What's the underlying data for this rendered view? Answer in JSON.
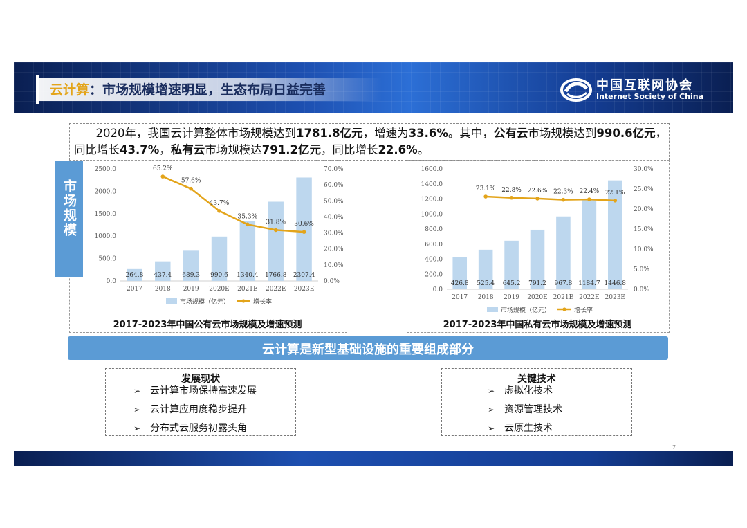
{
  "header": {
    "title_highlight": "云计算",
    "title_rest": "：市场规模增速明显，生态布局日益完善",
    "logo_cn": "中国互联网协会",
    "logo_en": "Internet Society of China"
  },
  "intro": {
    "p1": "2020年，我国云计算整体市场规模达到",
    "b1": "1781.8亿元",
    "p2": "，增速为",
    "b2": "33.6%",
    "p3": "。其中，",
    "b3": "公有云",
    "p4": "市场规模达到",
    "b4": "990.6亿元",
    "p5": "，同比增长",
    "b5": "43.7%",
    "p6": "，",
    "b6": "私有云",
    "p7": "市场规模达",
    "b7": "791.2亿元",
    "p8": "，同比增长",
    "b8": "22.6%",
    "p9": "。"
  },
  "side_tab": "市场规模",
  "chart_data": [
    {
      "type": "bar",
      "title": "2017-2023年中国公有云市场规模及增速预测",
      "categories": [
        "2017",
        "2018",
        "2019",
        "2020E",
        "2021E",
        "2022E",
        "2023E"
      ],
      "series": [
        {
          "name": "市场规模（亿元）",
          "type": "bar",
          "axis": "left",
          "values": [
            264.8,
            437.4,
            689.3,
            990.6,
            1340.4,
            1766.8,
            2307.4
          ]
        },
        {
          "name": "增长率",
          "type": "line",
          "axis": "right",
          "values": [
            null,
            65.2,
            57.6,
            43.7,
            35.3,
            31.8,
            30.6
          ]
        }
      ],
      "bar_labels": [
        "264.8",
        "437.4",
        "689.3",
        "990.6",
        "1340.4",
        "1766.8",
        "2307.4"
      ],
      "line_labels": [
        "",
        "65.2%",
        "57.6%",
        "43.7%",
        "35.3%",
        "31.8%",
        "30.6%"
      ],
      "y_left_ticks": [
        "2500.0",
        "2000.0",
        "1500.0",
        "1000.0",
        "500.0",
        "0.0"
      ],
      "y_right_ticks": [
        "70.0%",
        "60.0%",
        "50.0%",
        "40.0%",
        "30.0%",
        "20.0%",
        "10.0%",
        "0.0%"
      ],
      "ylim": [
        0,
        2500
      ],
      "y2lim": [
        0,
        70
      ],
      "legend_position": "bottom"
    },
    {
      "type": "bar",
      "title": "2017-2023年中国私有云市场规模及增速预测",
      "categories": [
        "2017",
        "2018",
        "2019",
        "2020E",
        "2021E",
        "2022E",
        "2023E"
      ],
      "series": [
        {
          "name": "市场规模（亿元）",
          "type": "bar",
          "axis": "left",
          "values": [
            426.8,
            525.4,
            645.2,
            791.2,
            967.8,
            1184.7,
            1446.8
          ]
        },
        {
          "name": "增长率",
          "type": "line",
          "axis": "right",
          "values": [
            null,
            23.1,
            22.8,
            22.6,
            22.3,
            22.4,
            22.1
          ]
        }
      ],
      "bar_labels": [
        "426.8",
        "525.4",
        "645.2",
        "791.2",
        "967.8",
        "1184.7",
        "1446.8"
      ],
      "line_labels": [
        "",
        "23.1%",
        "22.8%",
        "22.6%",
        "22.3%",
        "22.4%",
        "22.1%"
      ],
      "y_left_ticks": [
        "1600.0",
        "1400.0",
        "1200.0",
        "1000.0",
        "800.0",
        "600.0",
        "400.0",
        "200.0",
        "0.0"
      ],
      "y_right_ticks": [
        "30.0%",
        "25.0%",
        "20.0%",
        "15.0%",
        "10.0%",
        "5.0%",
        "0.0%"
      ],
      "ylim": [
        0,
        1600
      ],
      "y2lim": [
        0,
        30
      ],
      "legend_position": "bottom"
    }
  ],
  "banner": "云计算是新型基础设施的重要组成部分",
  "panels": {
    "left": {
      "title": "发展现状",
      "items": [
        "云计算市场保持高速发展",
        "云计算应用度稳步提升",
        "分布式云服务初露头角"
      ]
    },
    "right": {
      "title": "关键技术",
      "items": [
        "虚拟化技术",
        "资源管理技术",
        "云原生技术"
      ]
    }
  },
  "bullet_glyph": "➢",
  "page_number": "7",
  "colors": {
    "bar": "#bdd7ee",
    "line": "#e3a41a",
    "tab": "#5b9bd5",
    "title_highlight": "#e3a41a"
  }
}
